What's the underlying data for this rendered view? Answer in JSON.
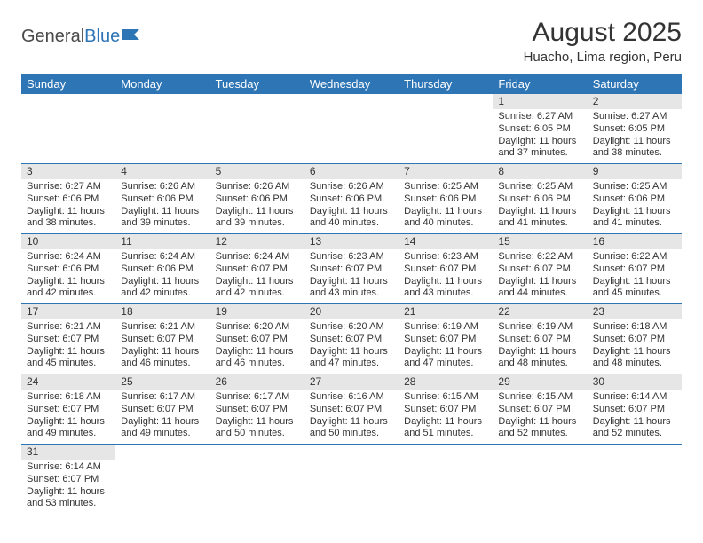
{
  "brand": {
    "text1": "General",
    "text2": "Blue"
  },
  "title": "August 2025",
  "location": "Huacho, Lima region, Peru",
  "colors": {
    "header_bg": "#2e75b6",
    "header_text": "#ffffff",
    "daynum_bg": "#e6e6e6",
    "border": "#2e75b6",
    "text": "#333333",
    "page_bg": "#ffffff"
  },
  "fonts": {
    "title_size": 30,
    "location_size": 15,
    "header_size": 13,
    "cell_size": 11
  },
  "day_headers": [
    "Sunday",
    "Monday",
    "Tuesday",
    "Wednesday",
    "Thursday",
    "Friday",
    "Saturday"
  ],
  "weeks": [
    [
      null,
      null,
      null,
      null,
      null,
      {
        "n": "1",
        "sunrise": "Sunrise: 6:27 AM",
        "sunset": "Sunset: 6:05 PM",
        "daylight": "Daylight: 11 hours and 37 minutes."
      },
      {
        "n": "2",
        "sunrise": "Sunrise: 6:27 AM",
        "sunset": "Sunset: 6:05 PM",
        "daylight": "Daylight: 11 hours and 38 minutes."
      }
    ],
    [
      {
        "n": "3",
        "sunrise": "Sunrise: 6:27 AM",
        "sunset": "Sunset: 6:06 PM",
        "daylight": "Daylight: 11 hours and 38 minutes."
      },
      {
        "n": "4",
        "sunrise": "Sunrise: 6:26 AM",
        "sunset": "Sunset: 6:06 PM",
        "daylight": "Daylight: 11 hours and 39 minutes."
      },
      {
        "n": "5",
        "sunrise": "Sunrise: 6:26 AM",
        "sunset": "Sunset: 6:06 PM",
        "daylight": "Daylight: 11 hours and 39 minutes."
      },
      {
        "n": "6",
        "sunrise": "Sunrise: 6:26 AM",
        "sunset": "Sunset: 6:06 PM",
        "daylight": "Daylight: 11 hours and 40 minutes."
      },
      {
        "n": "7",
        "sunrise": "Sunrise: 6:25 AM",
        "sunset": "Sunset: 6:06 PM",
        "daylight": "Daylight: 11 hours and 40 minutes."
      },
      {
        "n": "8",
        "sunrise": "Sunrise: 6:25 AM",
        "sunset": "Sunset: 6:06 PM",
        "daylight": "Daylight: 11 hours and 41 minutes."
      },
      {
        "n": "9",
        "sunrise": "Sunrise: 6:25 AM",
        "sunset": "Sunset: 6:06 PM",
        "daylight": "Daylight: 11 hours and 41 minutes."
      }
    ],
    [
      {
        "n": "10",
        "sunrise": "Sunrise: 6:24 AM",
        "sunset": "Sunset: 6:06 PM",
        "daylight": "Daylight: 11 hours and 42 minutes."
      },
      {
        "n": "11",
        "sunrise": "Sunrise: 6:24 AM",
        "sunset": "Sunset: 6:06 PM",
        "daylight": "Daylight: 11 hours and 42 minutes."
      },
      {
        "n": "12",
        "sunrise": "Sunrise: 6:24 AM",
        "sunset": "Sunset: 6:07 PM",
        "daylight": "Daylight: 11 hours and 42 minutes."
      },
      {
        "n": "13",
        "sunrise": "Sunrise: 6:23 AM",
        "sunset": "Sunset: 6:07 PM",
        "daylight": "Daylight: 11 hours and 43 minutes."
      },
      {
        "n": "14",
        "sunrise": "Sunrise: 6:23 AM",
        "sunset": "Sunset: 6:07 PM",
        "daylight": "Daylight: 11 hours and 43 minutes."
      },
      {
        "n": "15",
        "sunrise": "Sunrise: 6:22 AM",
        "sunset": "Sunset: 6:07 PM",
        "daylight": "Daylight: 11 hours and 44 minutes."
      },
      {
        "n": "16",
        "sunrise": "Sunrise: 6:22 AM",
        "sunset": "Sunset: 6:07 PM",
        "daylight": "Daylight: 11 hours and 45 minutes."
      }
    ],
    [
      {
        "n": "17",
        "sunrise": "Sunrise: 6:21 AM",
        "sunset": "Sunset: 6:07 PM",
        "daylight": "Daylight: 11 hours and 45 minutes."
      },
      {
        "n": "18",
        "sunrise": "Sunrise: 6:21 AM",
        "sunset": "Sunset: 6:07 PM",
        "daylight": "Daylight: 11 hours and 46 minutes."
      },
      {
        "n": "19",
        "sunrise": "Sunrise: 6:20 AM",
        "sunset": "Sunset: 6:07 PM",
        "daylight": "Daylight: 11 hours and 46 minutes."
      },
      {
        "n": "20",
        "sunrise": "Sunrise: 6:20 AM",
        "sunset": "Sunset: 6:07 PM",
        "daylight": "Daylight: 11 hours and 47 minutes."
      },
      {
        "n": "21",
        "sunrise": "Sunrise: 6:19 AM",
        "sunset": "Sunset: 6:07 PM",
        "daylight": "Daylight: 11 hours and 47 minutes."
      },
      {
        "n": "22",
        "sunrise": "Sunrise: 6:19 AM",
        "sunset": "Sunset: 6:07 PM",
        "daylight": "Daylight: 11 hours and 48 minutes."
      },
      {
        "n": "23",
        "sunrise": "Sunrise: 6:18 AM",
        "sunset": "Sunset: 6:07 PM",
        "daylight": "Daylight: 11 hours and 48 minutes."
      }
    ],
    [
      {
        "n": "24",
        "sunrise": "Sunrise: 6:18 AM",
        "sunset": "Sunset: 6:07 PM",
        "daylight": "Daylight: 11 hours and 49 minutes."
      },
      {
        "n": "25",
        "sunrise": "Sunrise: 6:17 AM",
        "sunset": "Sunset: 6:07 PM",
        "daylight": "Daylight: 11 hours and 49 minutes."
      },
      {
        "n": "26",
        "sunrise": "Sunrise: 6:17 AM",
        "sunset": "Sunset: 6:07 PM",
        "daylight": "Daylight: 11 hours and 50 minutes."
      },
      {
        "n": "27",
        "sunrise": "Sunrise: 6:16 AM",
        "sunset": "Sunset: 6:07 PM",
        "daylight": "Daylight: 11 hours and 50 minutes."
      },
      {
        "n": "28",
        "sunrise": "Sunrise: 6:15 AM",
        "sunset": "Sunset: 6:07 PM",
        "daylight": "Daylight: 11 hours and 51 minutes."
      },
      {
        "n": "29",
        "sunrise": "Sunrise: 6:15 AM",
        "sunset": "Sunset: 6:07 PM",
        "daylight": "Daylight: 11 hours and 52 minutes."
      },
      {
        "n": "30",
        "sunrise": "Sunrise: 6:14 AM",
        "sunset": "Sunset: 6:07 PM",
        "daylight": "Daylight: 11 hours and 52 minutes."
      }
    ],
    [
      {
        "n": "31",
        "sunrise": "Sunrise: 6:14 AM",
        "sunset": "Sunset: 6:07 PM",
        "daylight": "Daylight: 11 hours and 53 minutes."
      },
      null,
      null,
      null,
      null,
      null,
      null
    ]
  ]
}
